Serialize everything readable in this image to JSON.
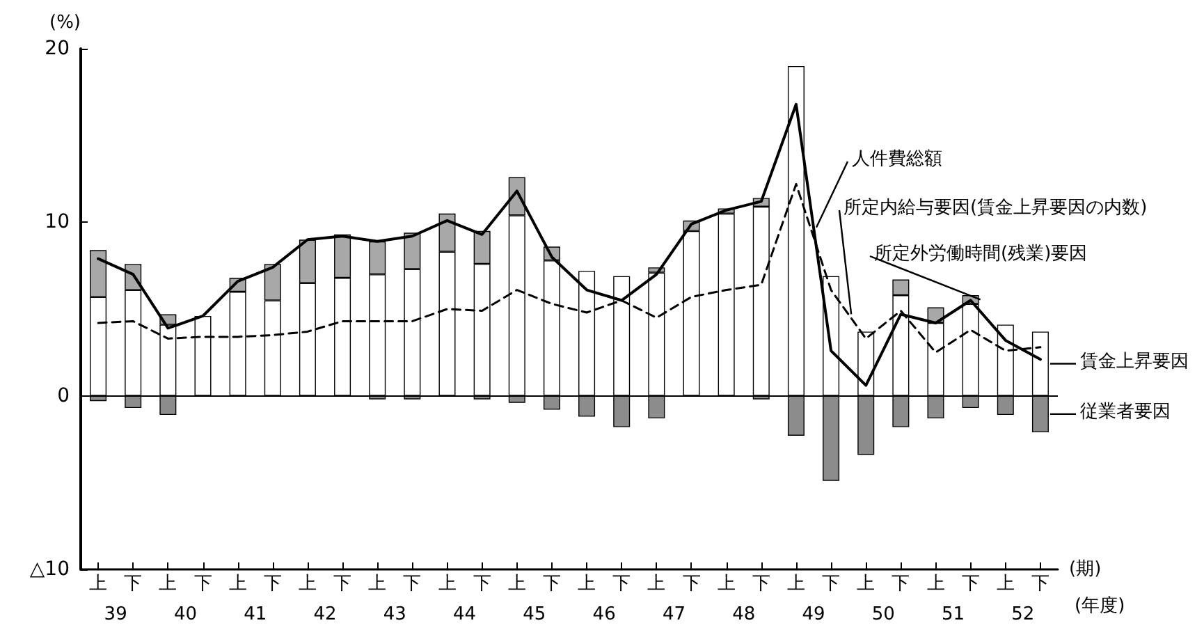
{
  "chart_data": {
    "type": "bar",
    "stacked": true,
    "ylabel": "(%)",
    "xlabel": "(期)",
    "legend": "right",
    "categories": [
      "上",
      "下",
      "上",
      "下",
      "上",
      "下",
      "上",
      "下",
      "上",
      "下",
      "上",
      "下",
      "上",
      "下",
      "上",
      "下",
      "上",
      "下",
      "上",
      "下",
      "上",
      "下",
      "上",
      "下",
      "上",
      "下",
      "上",
      "下"
    ],
    "ylim": [
      -10,
      20
    ],
    "yticks": [
      {
        "value": -10,
        "label": "△10"
      },
      0,
      10,
      20
    ],
    "ref_lines": [
      {
        "axis": "y",
        "value": 0,
        "color": "#000000"
      }
    ],
    "marker": "none",
    "series": [
      {
        "name": "賃金上昇要因",
        "color": "#ffffff",
        "values": [
          5.7,
          6.1,
          4.1,
          4.6,
          6.0,
          5.5,
          6.5,
          6.8,
          7.0,
          7.3,
          8.3,
          7.6,
          10.4,
          7.8,
          7.2,
          6.9,
          7.1,
          9.5,
          10.5,
          10.9,
          19.0,
          6.9,
          3.7,
          5.8,
          4.2,
          5.3,
          4.1,
          3.7
        ]
      },
      {
        "name": "所定外労働時間(残業)要因",
        "color": "#a8a8a8",
        "values": [
          2.7,
          1.5,
          0.6,
          null,
          0.8,
          2.1,
          2.5,
          2.5,
          1.9,
          2.1,
          2.2,
          1.9,
          2.2,
          0.8,
          null,
          null,
          0.3,
          0.6,
          0.3,
          0.5,
          null,
          null,
          null,
          0.9,
          0.9,
          0.5,
          null,
          null
        ]
      },
      {
        "name": "従業者要因",
        "color": "#8c8c8c",
        "values": [
          -0.3,
          -0.7,
          -1.1,
          null,
          null,
          null,
          null,
          null,
          -0.2,
          -0.2,
          null,
          -0.2,
          -0.4,
          -0.8,
          -1.2,
          -1.8,
          -1.3,
          null,
          null,
          -0.2,
          -2.3,
          -4.9,
          -3.4,
          -1.8,
          -1.3,
          -0.7,
          -1.1,
          -2.1
        ]
      },
      {
        "name": "人件費総額",
        "type": "line",
        "color": "#000000",
        "line_style": "solid",
        "values": [
          7.9,
          7.0,
          3.9,
          4.6,
          6.6,
          7.4,
          9.0,
          9.2,
          8.9,
          9.2,
          10.1,
          9.3,
          11.8,
          8.0,
          6.1,
          5.5,
          7.0,
          9.9,
          10.7,
          11.2,
          16.8,
          2.6,
          0.6,
          4.7,
          4.2,
          5.5,
          3.2,
          2.1
        ]
      },
      {
        "name": "所定内給与要因(賃金上昇要因の内数)",
        "type": "line",
        "color": "#000000",
        "line_style": "dashed",
        "values": [
          4.2,
          4.3,
          3.3,
          3.4,
          3.4,
          3.5,
          3.7,
          4.3,
          4.3,
          4.3,
          5.0,
          4.9,
          6.1,
          5.3,
          4.8,
          5.5,
          4.5,
          5.7,
          6.1,
          6.4,
          12.2,
          6.1,
          3.3,
          4.9,
          2.5,
          3.8,
          2.6,
          2.8
        ]
      }
    ],
    "annotations": [
      "39",
      "40",
      "41",
      "42",
      "43",
      "44",
      "45",
      "46",
      "47",
      "48",
      "49",
      "50",
      "51",
      "52",
      "(年度)"
    ]
  }
}
